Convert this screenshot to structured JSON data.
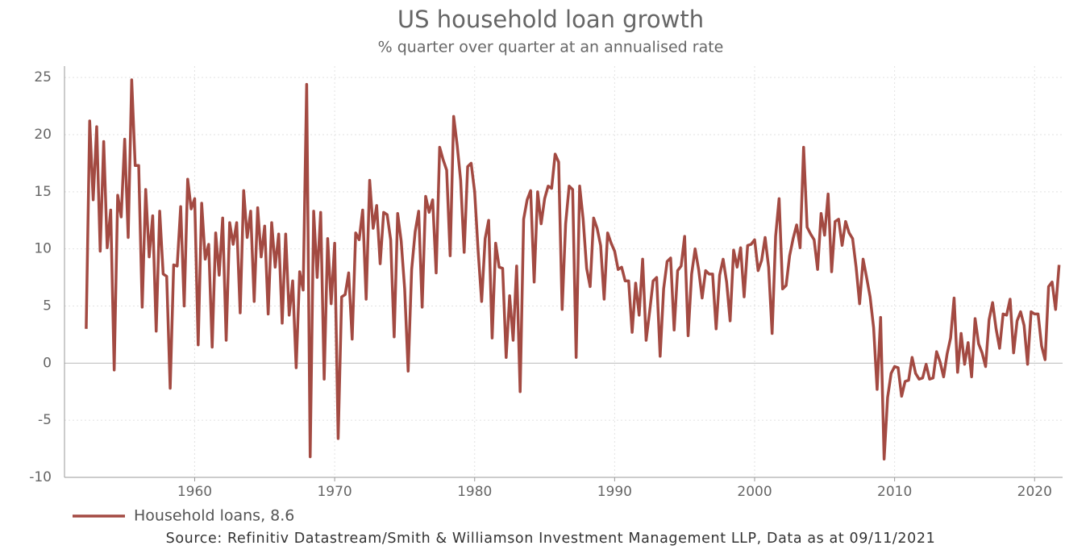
{
  "chart_data": {
    "type": "line",
    "title": "US household loan growth",
    "subtitle": "% quarter over quarter at an annualised rate",
    "source": "Source: Refinitiv Datastream/Smith & Williamson Investment Management LLP, Data as at 09/11/2021",
    "x": [
      1952.25,
      1952.5,
      1952.75,
      1953,
      1953.25,
      1953.5,
      1953.75,
      1954,
      1954.25,
      1954.5,
      1954.75,
      1955,
      1955.25,
      1955.5,
      1955.75,
      1956,
      1956.25,
      1956.5,
      1956.75,
      1957,
      1957.25,
      1957.5,
      1957.75,
      1958,
      1958.25,
      1958.5,
      1958.75,
      1959,
      1959.25,
      1959.5,
      1959.75,
      1960,
      1960.25,
      1960.5,
      1960.75,
      1961,
      1961.25,
      1961.5,
      1961.75,
      1962,
      1962.25,
      1962.5,
      1962.75,
      1963,
      1963.25,
      1963.5,
      1963.75,
      1964,
      1964.25,
      1964.5,
      1964.75,
      1965,
      1965.25,
      1965.5,
      1965.75,
      1966,
      1966.25,
      1966.5,
      1966.75,
      1967,
      1967.25,
      1967.5,
      1967.75,
      1968,
      1968.25,
      1968.5,
      1968.75,
      1969,
      1969.25,
      1969.5,
      1969.75,
      1970,
      1970.25,
      1970.5,
      1970.75,
      1971,
      1971.25,
      1971.5,
      1971.75,
      1972,
      1972.25,
      1972.5,
      1972.75,
      1973,
      1973.25,
      1973.5,
      1973.75,
      1974,
      1974.25,
      1974.5,
      1974.75,
      1975,
      1975.25,
      1975.5,
      1975.75,
      1976,
      1976.25,
      1976.5,
      1976.75,
      1977,
      1977.25,
      1977.5,
      1977.75,
      1978,
      1978.25,
      1978.5,
      1978.75,
      1979,
      1979.25,
      1979.5,
      1979.75,
      1980,
      1980.25,
      1980.5,
      1980.75,
      1981,
      1981.25,
      1981.5,
      1981.75,
      1982,
      1982.25,
      1982.5,
      1982.75,
      1983,
      1983.25,
      1983.5,
      1983.75,
      1984,
      1984.25,
      1984.5,
      1984.75,
      1985,
      1985.25,
      1985.5,
      1985.75,
      1986,
      1986.25,
      1986.5,
      1986.75,
      1987,
      1987.25,
      1987.5,
      1987.75,
      1988,
      1988.25,
      1988.5,
      1988.75,
      1989,
      1989.25,
      1989.5,
      1989.75,
      1990,
      1990.25,
      1990.5,
      1990.75,
      1991,
      1991.25,
      1991.5,
      1991.75,
      1992,
      1992.25,
      1992.5,
      1992.75,
      1993,
      1993.25,
      1993.5,
      1993.75,
      1994,
      1994.25,
      1994.5,
      1994.75,
      1995,
      1995.25,
      1995.5,
      1995.75,
      1996,
      1996.25,
      1996.5,
      1996.75,
      1997,
      1997.25,
      1997.5,
      1997.75,
      1998,
      1998.25,
      1998.5,
      1998.75,
      1999,
      1999.25,
      1999.5,
      1999.75,
      2000,
      2000.25,
      2000.5,
      2000.75,
      2001,
      2001.25,
      2001.5,
      2001.75,
      2002,
      2002.25,
      2002.5,
      2002.75,
      2003,
      2003.25,
      2003.5,
      2003.75,
      2004,
      2004.25,
      2004.5,
      2004.75,
      2005,
      2005.25,
      2005.5,
      2005.75,
      2006,
      2006.25,
      2006.5,
      2006.75,
      2007,
      2007.25,
      2007.5,
      2007.75,
      2008,
      2008.25,
      2008.5,
      2008.75,
      2009,
      2009.25,
      2009.5,
      2009.75,
      2010,
      2010.25,
      2010.5,
      2010.75,
      2011,
      2011.25,
      2011.5,
      2011.75,
      2012,
      2012.25,
      2012.5,
      2012.75,
      2013,
      2013.25,
      2013.5,
      2013.75,
      2014,
      2014.25,
      2014.5,
      2014.75,
      2015,
      2015.25,
      2015.5,
      2015.75,
      2016,
      2016.25,
      2016.5,
      2016.75,
      2017,
      2017.25,
      2017.5,
      2017.75,
      2018,
      2018.25,
      2018.5,
      2018.75,
      2019,
      2019.25,
      2019.5,
      2019.75,
      2020,
      2020.25,
      2020.5,
      2020.75,
      2021,
      2021.25,
      2021.5,
      2021.75
    ],
    "series": [
      {
        "name": "Household loans, 8.6",
        "color": "#a34a42",
        "values": [
          3.0,
          21.2,
          14.3,
          20.7,
          9.8,
          19.4,
          10.1,
          13.4,
          -0.6,
          14.7,
          12.8,
          19.6,
          11.0,
          24.8,
          17.3,
          17.3,
          4.9,
          15.2,
          9.3,
          12.9,
          2.8,
          13.3,
          7.8,
          7.6,
          -2.2,
          8.6,
          8.5,
          13.7,
          5.0,
          16.1,
          13.5,
          14.4,
          1.6,
          14.0,
          9.1,
          10.4,
          1.4,
          11.4,
          7.7,
          12.7,
          2.0,
          12.3,
          10.4,
          12.3,
          4.4,
          15.1,
          11.0,
          13.3,
          5.4,
          13.6,
          9.3,
          12.0,
          4.3,
          12.3,
          8.4,
          11.3,
          3.5,
          11.3,
          4.2,
          7.2,
          -0.4,
          8.0,
          6.4,
          24.4,
          -8.2,
          13.3,
          7.5,
          13.2,
          -1.4,
          10.9,
          5.2,
          10.5,
          -6.6,
          5.8,
          6.0,
          7.9,
          2.1,
          11.4,
          10.8,
          13.4,
          5.6,
          16.0,
          11.8,
          13.8,
          8.7,
          13.2,
          13.0,
          10.8,
          2.3,
          13.1,
          10.7,
          6.5,
          -0.7,
          8.2,
          11.5,
          13.3,
          4.9,
          14.6,
          13.2,
          14.3,
          7.9,
          18.9,
          17.8,
          16.9,
          9.4,
          21.6,
          19.1,
          16.0,
          9.7,
          17.2,
          17.5,
          15.0,
          9.8,
          5.4,
          10.9,
          12.5,
          2.2,
          10.5,
          8.4,
          8.3,
          0.5,
          5.9,
          2.0,
          8.5,
          -2.5,
          12.6,
          14.3,
          15.1,
          7.1,
          15.0,
          12.2,
          14.4,
          15.5,
          15.3,
          18.3,
          17.6,
          4.7,
          12.2,
          15.5,
          15.2,
          0.5,
          15.5,
          12.6,
          8.3,
          6.7,
          12.7,
          11.8,
          10.3,
          5.6,
          11.4,
          10.5,
          9.8,
          8.2,
          8.4,
          7.2,
          7.2,
          2.7,
          7.0,
          4.2,
          9.1,
          2.0,
          4.5,
          7.2,
          7.5,
          0.6,
          6.5,
          8.9,
          9.2,
          2.9,
          8.1,
          8.5,
          11.1,
          2.4,
          7.8,
          10.0,
          8.2,
          5.7,
          8.1,
          7.8,
          7.8,
          3.0,
          7.7,
          9.1,
          7.1,
          3.7,
          9.9,
          8.4,
          10.1,
          5.8,
          10.3,
          10.4,
          10.8,
          8.1,
          9.0,
          11.0,
          8.4,
          2.6,
          11.1,
          14.4,
          6.5,
          6.8,
          9.4,
          10.9,
          12.1,
          10.1,
          18.9,
          11.9,
          11.3,
          10.8,
          8.2,
          13.1,
          11.2,
          14.8,
          8.0,
          12.4,
          12.6,
          10.3,
          12.4,
          11.4,
          10.9,
          8.4,
          5.2,
          9.1,
          7.5,
          5.8,
          3.1,
          -2.3,
          4.0,
          -8.4,
          -3.0,
          -0.9,
          -0.3,
          -0.4,
          -2.9,
          -1.6,
          -1.5,
          0.5,
          -0.9,
          -1.4,
          -1.3,
          -0.1,
          -1.4,
          -1.3,
          1.0,
          0.1,
          -1.2,
          0.8,
          2.2,
          5.7,
          -0.8,
          2.6,
          -0.1,
          1.8,
          -1.2,
          3.9,
          1.7,
          0.9,
          -0.3,
          3.8,
          5.3,
          3.0,
          1.3,
          4.3,
          4.2,
          5.6,
          0.9,
          3.7,
          4.5,
          3.3,
          -0.1,
          4.5,
          4.3,
          4.3,
          1.5,
          0.3,
          6.7,
          7.1,
          4.7,
          8.6
        ]
      }
    ],
    "xlim": [
      1950.7,
      2022
    ],
    "xticks": [
      1960,
      1970,
      1980,
      1990,
      2000,
      2010,
      2020
    ],
    "ylim": [
      -10,
      26
    ],
    "yticks": [
      -10,
      -5,
      0,
      5,
      10,
      15,
      20,
      25
    ],
    "grid": true,
    "legend": "bottom-left"
  }
}
